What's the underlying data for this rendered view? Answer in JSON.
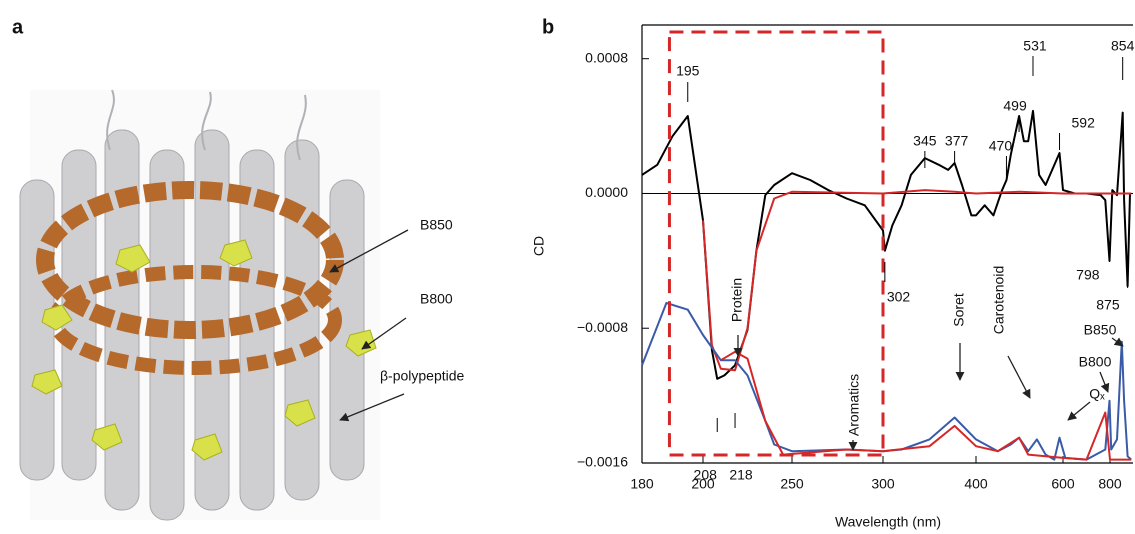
{
  "panels": {
    "a": "a",
    "b": "b"
  },
  "structure_labels": [
    "B850",
    "B800",
    "β-polypeptide"
  ],
  "chart_data": {
    "type": "line",
    "ylabel": "CD",
    "xlabel": "Wavelength (nm)",
    "ylim": [
      -0.0016,
      0.001
    ],
    "yticks": [
      0.0008,
      {
        "value": 0,
        "label": "0.0000"
      },
      {
        "value": -0.0008,
        "label": "−0.0008"
      },
      {
        "value": -0.0016,
        "label": "−0.0016"
      }
    ],
    "xticks": [
      180,
      200,
      250,
      300,
      400,
      600,
      800
    ],
    "zero_line": true,
    "highlight_range": [
      189,
      300
    ],
    "highlight_color": "#d62728",
    "series": [
      {
        "color": "#000000",
        "x": [
          180,
          185,
          190,
          195,
          200,
          205,
          208,
          212,
          218,
          225,
          230,
          235,
          240,
          250,
          260,
          270,
          280,
          290,
          300,
          302,
          310,
          320,
          330,
          345,
          360,
          370,
          377,
          385,
          395,
          400,
          420,
          440,
          460,
          470,
          480,
          499,
          510,
          520,
          531,
          545,
          560,
          592,
          600,
          650,
          700,
          760,
          780,
          798,
          810,
          830,
          854,
          860,
          875,
          885,
          890
        ],
        "values": [
          0.00011,
          0.00017,
          0.00034,
          0.00046,
          -0.00016,
          -0.00093,
          -0.0011,
          -0.00108,
          -0.00102,
          -0.00081,
          -0.00034,
          -1e-05,
          5e-05,
          0.00012,
          8e-05,
          2e-05,
          -3e-05,
          -7e-05,
          -0.00022,
          -0.00034,
          -0.00019,
          -7e-05,
          0.00011,
          0.00021,
          0.00017,
          0.00014,
          0.00018,
          5e-05,
          -0.00013,
          -0.00013,
          -7e-05,
          -0.00013,
          2e-05,
          8e-05,
          0.00023,
          0.00046,
          0.00031,
          0.00031,
          0.00049,
          0.00011,
          5e-05,
          0.00024,
          2e-05,
          0,
          0,
          -1e-05,
          -4e-05,
          -0.0004,
          2e-05,
          -1e-05,
          0.00048,
          -4e-05,
          -0.00055,
          0,
          0
        ]
      },
      {
        "color": "#d62728",
        "x": [
          200,
          205,
          210,
          218,
          225,
          230,
          240,
          250,
          300,
          345,
          377,
          400,
          500,
          600,
          800,
          890
        ],
        "values": [
          -0.00016,
          -0.0009,
          -0.00104,
          -0.00105,
          -0.0008,
          -0.00034,
          -3e-05,
          1e-05,
          0,
          2e-05,
          1e-05,
          0,
          1e-05,
          0,
          0,
          0
        ]
      },
      {
        "color": "#3a5ba8",
        "x": [
          180,
          188,
          195,
          200,
          210,
          218,
          225,
          235,
          240,
          250,
          280,
          300,
          320,
          350,
          377,
          400,
          450,
          480,
          499,
          520,
          540,
          560,
          580,
          592,
          610,
          700,
          780,
          798,
          805,
          830,
          850,
          860,
          875,
          890
        ],
        "values": [
          -0.00102,
          -0.00065,
          -0.00069,
          -0.00084,
          -0.00099,
          -0.00099,
          -0.00108,
          -0.00135,
          -0.00149,
          -0.00153,
          -0.00152,
          -0.00153,
          -0.00152,
          -0.00146,
          -0.00133,
          -0.00146,
          -0.00153,
          -0.00149,
          -0.00145,
          -0.00153,
          -0.00146,
          -0.00155,
          -0.00158,
          -0.00145,
          -0.00157,
          -0.00158,
          -0.00152,
          -0.00123,
          -0.00152,
          -0.00146,
          -0.00088,
          -0.00123,
          -0.00156,
          -0.00158
        ]
      },
      {
        "color": "#d62728",
        "x": [
          210,
          218,
          225,
          235,
          245,
          280,
          300,
          350,
          377,
          400,
          450,
          499,
          520,
          560,
          600,
          700,
          780,
          800,
          850,
          890
        ],
        "values": [
          -0.00099,
          -0.00094,
          -0.00098,
          -0.00135,
          -0.00155,
          -0.00152,
          -0.00153,
          -0.0015,
          -0.00138,
          -0.0015,
          -0.00153,
          -0.00145,
          -0.00155,
          -0.00156,
          -0.00157,
          -0.00158,
          -0.0013,
          -0.00158,
          -0.00158,
          -0.00158
        ]
      }
    ],
    "peak_labels": [
      {
        "text": "195",
        "x": 195
      },
      {
        "text": "208",
        "x": 208
      },
      {
        "text": "218",
        "x": 218
      },
      {
        "text": "302",
        "x": 302
      },
      {
        "text": "345",
        "x": 345
      },
      {
        "text": "377",
        "x": 377
      },
      {
        "text": "470",
        "x": 470
      },
      {
        "text": "499",
        "x": 499
      },
      {
        "text": "531",
        "x": 531
      },
      {
        "text": "592",
        "x": 592
      },
      {
        "text": "854",
        "x": 854
      },
      {
        "text": "798",
        "x": 798
      },
      {
        "text": "875",
        "x": 875
      }
    ],
    "band_labels": [
      "Protein",
      "Aromatics",
      "Soret",
      "Carotenoid",
      "Qₓ",
      "B800",
      "B850"
    ],
    "band_color": "#3a5ba8"
  }
}
